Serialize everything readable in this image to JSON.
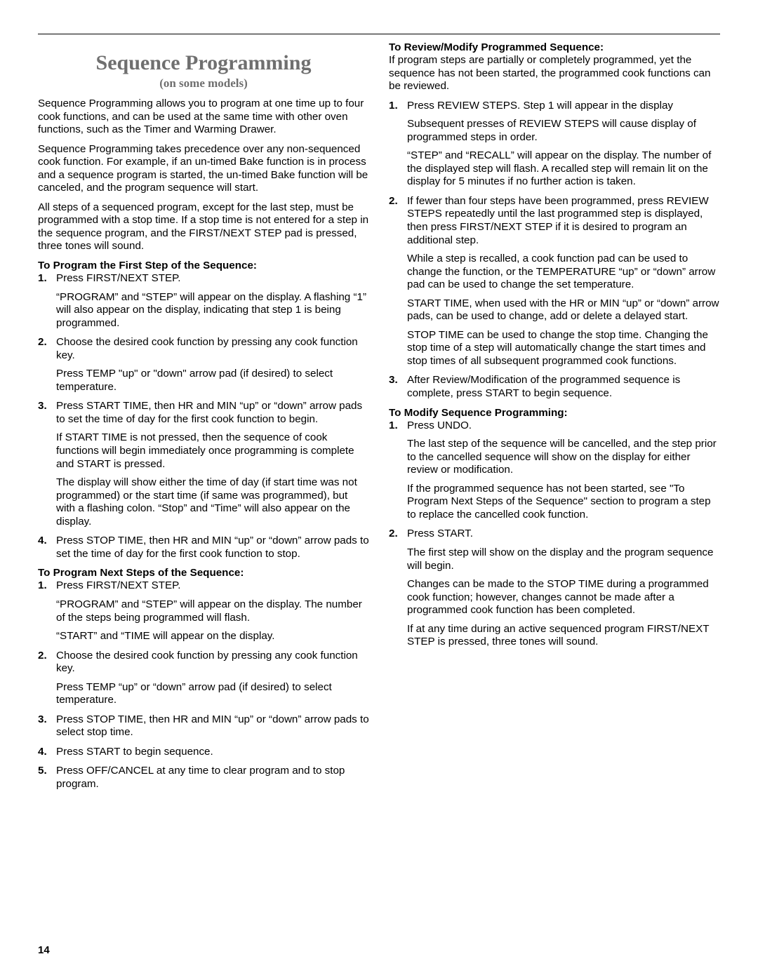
{
  "page_number": "14",
  "left": {
    "title": "Sequence Programming",
    "subtitle": "(on some models)",
    "intro": [
      "Sequence Programming allows you to program at one time up to four cook functions, and can be used at the same time with other oven functions, such as the Timer and Warming Drawer.",
      "Sequence Programming takes precedence over any non-sequenced cook function. For example, if an un-timed Bake function is in process and a sequence program is started, the un-timed Bake function will be canceled, and the program sequence will start.",
      "All steps of a sequenced program, except for the last step, must be programmed with a stop time. If a stop time is not entered for a step in the sequence program, and the FIRST/NEXT STEP pad is pressed, three tones will sound."
    ],
    "sec1": {
      "heading": "To Program the First Step of the Sequence:",
      "items": [
        {
          "num": "1.",
          "lead": "Press FIRST/NEXT STEP.",
          "paras": [
            "“PROGRAM” and “STEP” will appear on the display. A flashing “1” will also appear on the display, indicating that step 1 is being programmed."
          ]
        },
        {
          "num": "2.",
          "lead": "Choose the desired cook function by pressing any cook function key.",
          "paras": [
            "Press TEMP \"up\" or \"down\" arrow pad (if desired) to select temperature."
          ]
        },
        {
          "num": "3.",
          "lead": "Press START TIME, then HR and MIN “up” or “down” arrow pads to set the time of day for the first cook function to begin.",
          "paras": [
            "If START TIME is not pressed, then the sequence of cook functions will begin immediately once programming is complete and START is pressed.",
            "The display will show either the time of day (if start time was not programmed) or the start time (if same was programmed), but with a flashing colon. “Stop” and “Time” will also appear on the display."
          ]
        },
        {
          "num": "4.",
          "lead": "Press STOP TIME, then HR and MIN “up” or “down” arrow pads to set the time of day for the first cook function to stop.",
          "paras": []
        }
      ]
    },
    "sec2": {
      "heading": "To Program Next Steps of the Sequence:",
      "items": [
        {
          "num": "1.",
          "lead": "Press FIRST/NEXT STEP.",
          "paras": [
            "“PROGRAM” and “STEP” will appear on the display. The number of the steps being programmed will flash.",
            "“START” and “TIME will appear on the display."
          ]
        },
        {
          "num": "2.",
          "lead": "Choose the desired cook function by pressing any cook function key.",
          "paras": [
            "Press TEMP “up” or “down” arrow pad (if desired) to select temperature."
          ]
        },
        {
          "num": "3.",
          "lead": "Press STOP TIME, then HR and MIN “up” or “down” arrow pads to select stop time.",
          "paras": []
        },
        {
          "num": "4.",
          "lead": "Press START to begin sequence.",
          "paras": []
        },
        {
          "num": "5.",
          "lead": "Press OFF/CANCEL at any time to clear program and to stop program.",
          "paras": []
        }
      ]
    }
  },
  "right": {
    "sec3": {
      "heading": "To Review/Modify Programmed Sequence:",
      "intro": "If program steps are partially or completely programmed, yet the sequence has not been started, the programmed cook functions can be reviewed.",
      "items": [
        {
          "num": "1.",
          "lead": "Press REVIEW STEPS. Step 1 will appear in the display",
          "paras": [
            "Subsequent presses of REVIEW STEPS will cause display of programmed steps in order.",
            "“STEP” and “RECALL” will appear on the display. The number of the displayed step will flash. A recalled step will remain lit on the display for 5 minutes if no further action is taken."
          ]
        },
        {
          "num": "2.",
          "lead": "If fewer than four steps have been programmed, press REVIEW STEPS repeatedly until the last programmed step is displayed, then press FIRST/NEXT STEP if it is desired to program an additional step.",
          "paras": [
            "While a step is recalled, a cook function pad can be used to change the function, or the TEMPERATURE “up” or “down” arrow pad can be used to change the set temperature.",
            "START TIME, when used with the HR or MIN “up” or “down” arrow pads, can be used to change, add or delete a delayed start.",
            "STOP TIME can be used to change the stop time. Changing the stop time of a step will automatically change the start times and stop times of all subsequent programmed cook functions."
          ]
        },
        {
          "num": "3.",
          "lead": "After Review/Modification of the programmed sequence is complete, press START to begin sequence.",
          "paras": []
        }
      ]
    },
    "sec4": {
      "heading": "To Modify Sequence Programming:",
      "items": [
        {
          "num": "1.",
          "lead": "Press UNDO.",
          "paras": [
            "The last step of the sequence will be cancelled, and the step prior to the cancelled sequence will show on the display for either review or modification.",
            "If the programmed sequence has not been started, see \"To Program Next Steps of the Sequence\" section to program a step to replace the cancelled cook function."
          ]
        },
        {
          "num": "2.",
          "lead": "Press START.",
          "paras": [
            "The first step will show on the display and the program sequence will begin.",
            "Changes can be made to the STOP TIME during a programmed cook function; however, changes cannot be made after a programmed cook function has been completed.",
            "If at any time during an active sequenced program FIRST/NEXT STEP is pressed, three tones will sound."
          ]
        }
      ]
    }
  }
}
